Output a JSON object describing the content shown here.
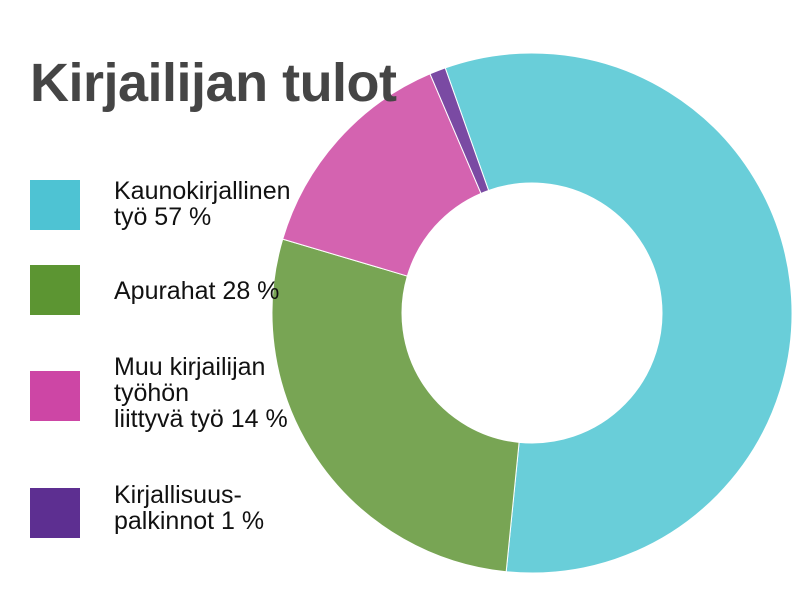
{
  "chart_data": {
    "type": "pie",
    "title": "Kirjailijan tulot",
    "donut": true,
    "categories": [
      "Kaunokirjallinen\ntyö 57 %",
      "Apurahat 28 %",
      "Muu kirjailijan\ntyöhön\nliittyvä työ 14 %",
      "Kirjallisuus-\npalkinnot 1 %"
    ],
    "values": [
      57,
      28,
      14,
      1
    ],
    "colors": [
      "#69ced9",
      "#78a554",
      "#d463b0",
      "#7a4aa3"
    ],
    "legend_colors": [
      "#4ec3d3",
      "#5c9532",
      "#cd46a5",
      "#5d2f91"
    ],
    "legend_position": "left"
  }
}
